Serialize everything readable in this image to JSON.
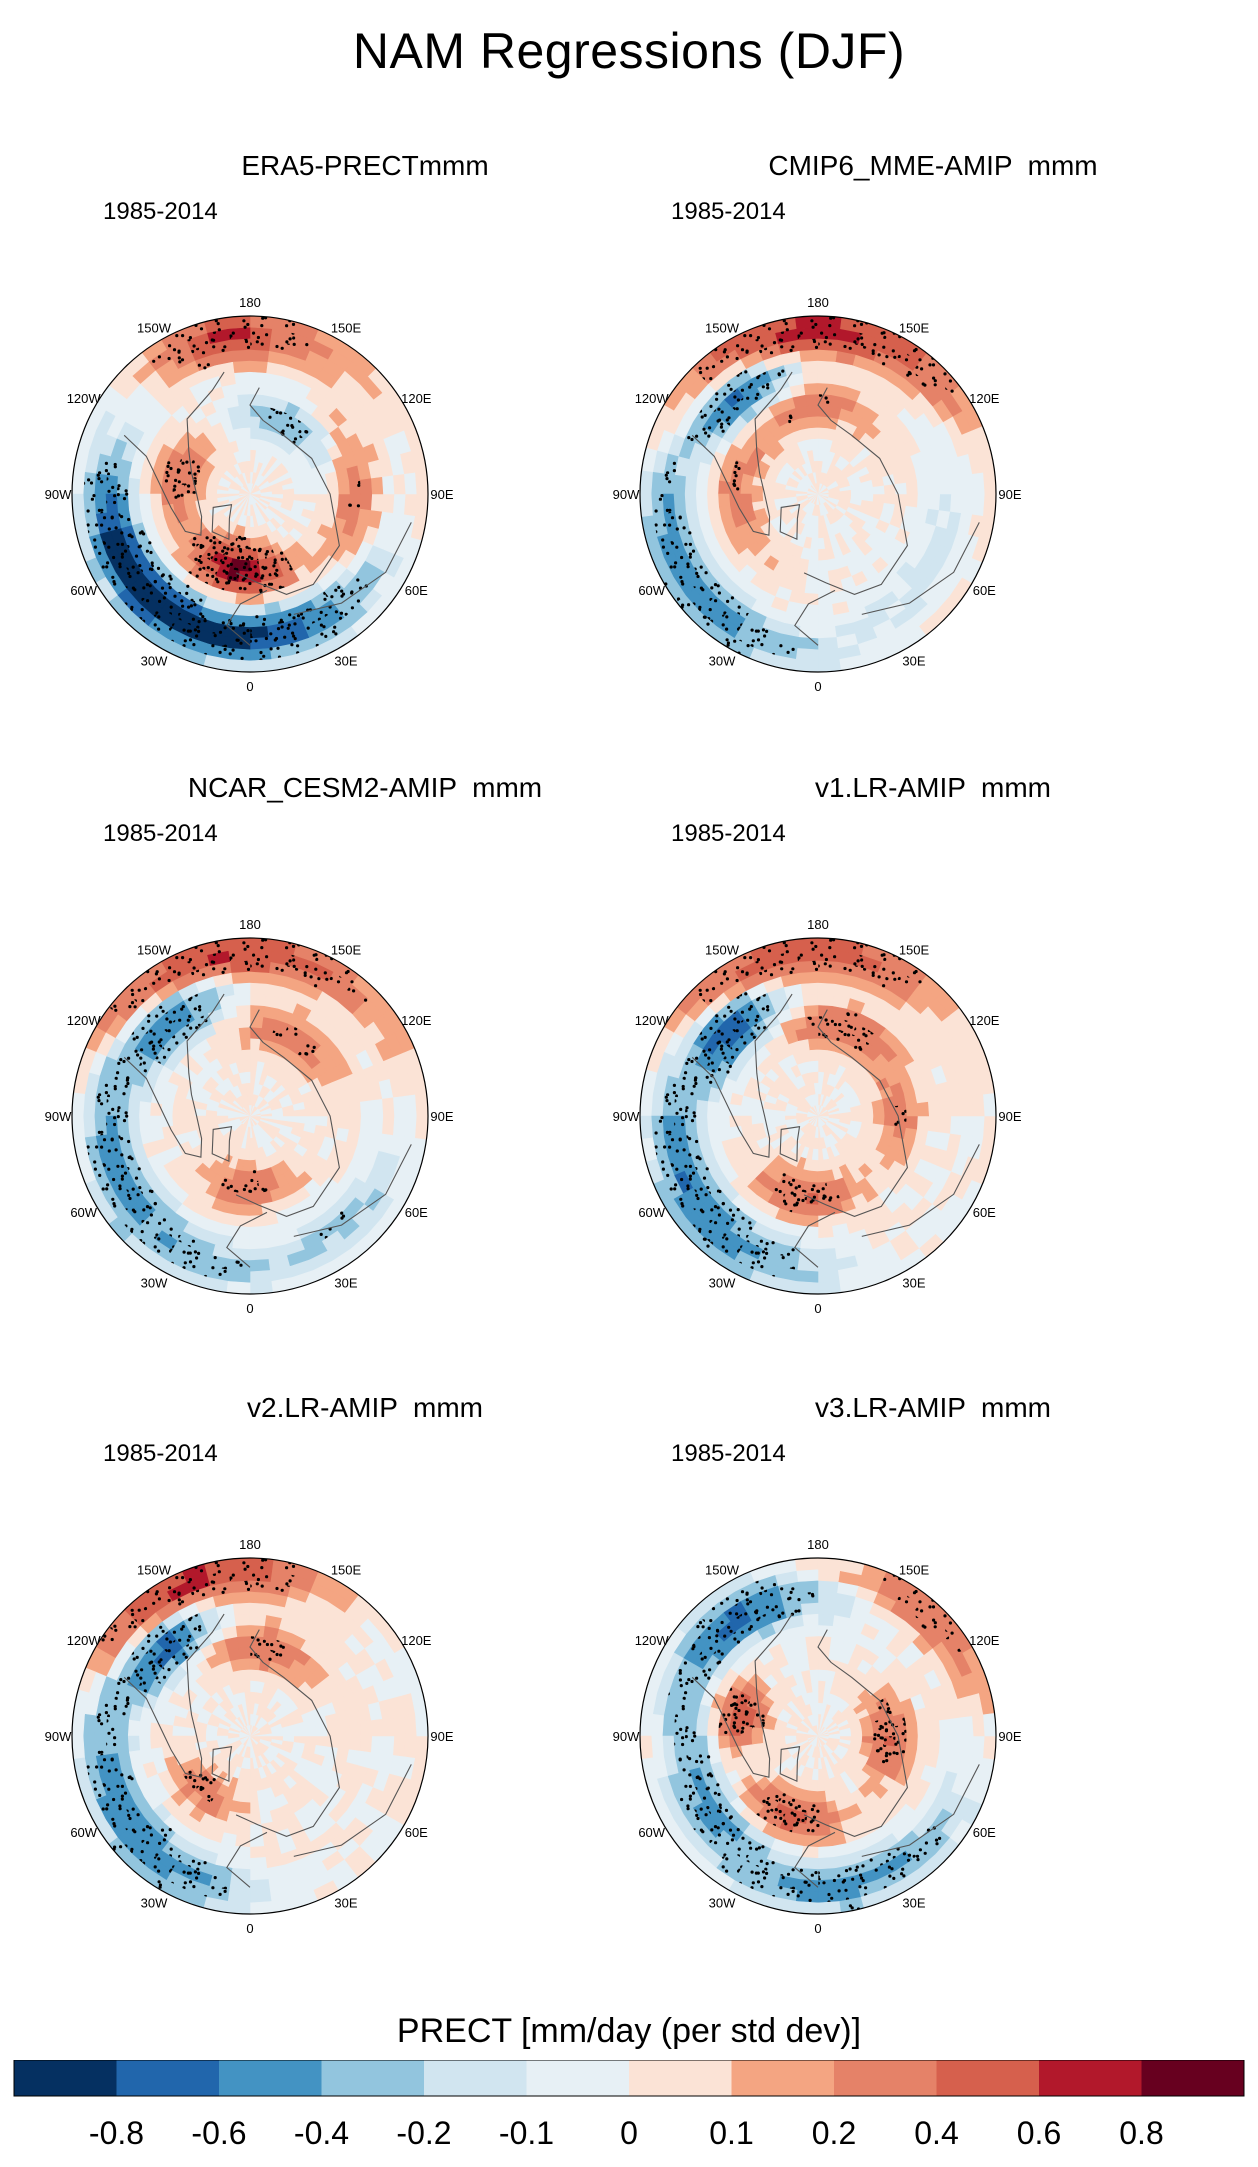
{
  "figure": {
    "title": "NAM Regressions (DJF)"
  },
  "panels": [
    {
      "title": "ERA5-PRECTmmm",
      "period": "1985-2014",
      "pattern": [
        {
          "lon": 330,
          "r": 0.82,
          "v": -0.7,
          "w": 60
        },
        {
          "lon": 300,
          "r": 0.78,
          "v": -0.5,
          "w": 40
        },
        {
          "lon": 20,
          "r": 0.78,
          "v": -0.35,
          "w": 40
        },
        {
          "lon": 0,
          "r": 0.45,
          "v": 0.55,
          "w": 30
        },
        {
          "lon": 340,
          "r": 0.4,
          "v": 0.45,
          "w": 30
        },
        {
          "lon": 255,
          "r": 0.4,
          "v": 0.35,
          "w": 35
        },
        {
          "lon": 90,
          "r": 0.6,
          "v": 0.3,
          "w": 40
        },
        {
          "lon": 150,
          "r": 0.45,
          "v": -0.3,
          "w": 40
        },
        {
          "lon": 190,
          "r": 0.9,
          "v": 0.45,
          "w": 25
        },
        {
          "lon": 170,
          "r": 0.9,
          "v": 0.2,
          "w": 40
        }
      ]
    },
    {
      "title": "CMIP6_MME-AMIP  mmm",
      "period": "1985-2014",
      "pattern": [
        {
          "lon": 180,
          "r": 0.92,
          "v": 0.7,
          "w": 50
        },
        {
          "lon": 220,
          "r": 0.7,
          "v": -0.65,
          "w": 25
        },
        {
          "lon": 290,
          "r": 0.85,
          "v": -0.4,
          "w": 45
        },
        {
          "lon": 330,
          "r": 0.9,
          "v": -0.25,
          "w": 40
        },
        {
          "lon": 180,
          "r": 0.5,
          "v": 0.25,
          "w": 50
        },
        {
          "lon": 270,
          "r": 0.45,
          "v": 0.25,
          "w": 50
        },
        {
          "lon": 60,
          "r": 0.75,
          "v": -0.15,
          "w": 45
        }
      ]
    },
    {
      "title": "NCAR_CESM2-AMIP  mmm",
      "period": "1985-2014",
      "pattern": [
        {
          "lon": 190,
          "r": 0.92,
          "v": 0.6,
          "w": 55
        },
        {
          "lon": 220,
          "r": 0.68,
          "v": -0.6,
          "w": 25
        },
        {
          "lon": 280,
          "r": 0.8,
          "v": -0.45,
          "w": 50
        },
        {
          "lon": 330,
          "r": 0.88,
          "v": -0.25,
          "w": 40
        },
        {
          "lon": 0,
          "r": 0.4,
          "v": 0.3,
          "w": 40
        },
        {
          "lon": 150,
          "r": 0.5,
          "v": 0.3,
          "w": 40
        },
        {
          "lon": 40,
          "r": 0.8,
          "v": -0.25,
          "w": 30
        }
      ]
    },
    {
      "title": "v1.LR-AMIP  mmm",
      "period": "1985-2014",
      "pattern": [
        {
          "lon": 185,
          "r": 0.92,
          "v": 0.55,
          "w": 45
        },
        {
          "lon": 225,
          "r": 0.68,
          "v": -0.75,
          "w": 25
        },
        {
          "lon": 290,
          "r": 0.8,
          "v": -0.5,
          "w": 45
        },
        {
          "lon": 330,
          "r": 0.88,
          "v": -0.3,
          "w": 40
        },
        {
          "lon": 350,
          "r": 0.45,
          "v": 0.4,
          "w": 35
        },
        {
          "lon": 165,
          "r": 0.52,
          "v": 0.35,
          "w": 40
        },
        {
          "lon": 90,
          "r": 0.45,
          "v": 0.25,
          "w": 35
        }
      ]
    },
    {
      "title": "v2.LR-AMIP  mmm",
      "period": "1985-2014",
      "pattern": [
        {
          "lon": 200,
          "r": 0.93,
          "v": 0.65,
          "w": 40
        },
        {
          "lon": 225,
          "r": 0.68,
          "v": -0.7,
          "w": 25
        },
        {
          "lon": 290,
          "r": 0.82,
          "v": -0.45,
          "w": 45
        },
        {
          "lon": 330,
          "r": 0.88,
          "v": -0.3,
          "w": 35
        },
        {
          "lon": 170,
          "r": 0.5,
          "v": 0.3,
          "w": 40
        },
        {
          "lon": 320,
          "r": 0.4,
          "v": 0.3,
          "w": 30
        }
      ]
    },
    {
      "title": "v3.LR-AMIP  mmm",
      "period": "1985-2014",
      "pattern": [
        {
          "lon": 215,
          "r": 0.8,
          "v": -0.65,
          "w": 40
        },
        {
          "lon": 255,
          "r": 0.45,
          "v": 0.6,
          "w": 20
        },
        {
          "lon": 300,
          "r": 0.72,
          "v": -0.45,
          "w": 35
        },
        {
          "lon": 340,
          "r": 0.48,
          "v": 0.45,
          "w": 35
        },
        {
          "lon": 10,
          "r": 0.85,
          "v": -0.5,
          "w": 50
        },
        {
          "lon": 90,
          "r": 0.4,
          "v": 0.4,
          "w": 35
        },
        {
          "lon": 140,
          "r": 0.92,
          "v": 0.35,
          "w": 35
        }
      ]
    }
  ],
  "longitude_labels": [
    "180",
    "150E",
    "120E",
    "90E",
    "60E",
    "30E",
    "0",
    "30W",
    "60W",
    "90W",
    "120W",
    "150W"
  ],
  "colorbar": {
    "label": "PRECT [mm/day (per std dev)]",
    "tick_labels": [
      "-0.8",
      "-0.6",
      "-0.4",
      "-0.2",
      "-0.1",
      "0",
      "0.1",
      "0.2",
      "0.4",
      "0.6",
      "0.8"
    ],
    "levels": [
      -0.8,
      -0.6,
      -0.4,
      -0.2,
      -0.1,
      0,
      0.1,
      0.2,
      0.4,
      0.6,
      0.8
    ],
    "colors": [
      "#053061",
      "#2166ac",
      "#4393c3",
      "#92c5de",
      "#d1e5f0",
      "#e7f0f5",
      "#fbe3d6",
      "#f4a582",
      "#e58268",
      "#d6604d",
      "#b2182b",
      "#67001f"
    ]
  }
}
